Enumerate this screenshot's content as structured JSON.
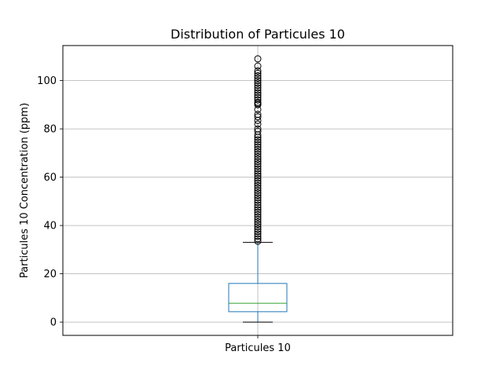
{
  "chart_data": {
    "type": "box",
    "title": "Distribution of Particules 10",
    "xlabel": "",
    "ylabel": "Particules 10 Concentration (ppm)",
    "categories": [
      "Particules 10"
    ],
    "ylim": [
      -5.5,
      114.5
    ],
    "yticks": [
      0,
      20,
      40,
      60,
      80,
      100
    ],
    "grid": true,
    "boxes": [
      {
        "name": "Particules 10",
        "whisker_low": 0,
        "q1": 4.3,
        "median": 7.8,
        "q3": 16.0,
        "whisker_high": 33.0,
        "outliers": [
          33.5,
          34.5,
          35.5,
          36.5,
          37.5,
          38.5,
          39.5,
          40.5,
          41.5,
          42.5,
          43.5,
          44.5,
          45.5,
          46.5,
          47.5,
          48.5,
          49.5,
          50.5,
          51.5,
          52.5,
          53.5,
          54.5,
          55.5,
          56.5,
          57.5,
          58.5,
          59.5,
          60.5,
          61.5,
          62.5,
          63.5,
          64.5,
          65.5,
          66.5,
          67.5,
          68.5,
          69.5,
          70.5,
          71.5,
          72.5,
          73.5,
          74.5,
          75.5,
          76.5,
          77.5,
          79.0,
          80.0,
          82.0,
          83.5,
          85.0,
          86.0,
          88.0,
          90.0,
          90.5,
          91.0,
          92.0,
          93.0,
          94.0,
          95.0,
          96.0,
          97.0,
          98.0,
          99.0,
          100.0,
          101.0,
          102.0,
          103.0,
          104.0,
          106.0,
          109.0
        ]
      }
    ],
    "colors": {
      "box": "#1f77b4",
      "median": "#2ca02c",
      "whisker": "#1f77b4",
      "cap": "#000000",
      "outlier": "#000000",
      "grid": "#b0b0b0"
    }
  }
}
